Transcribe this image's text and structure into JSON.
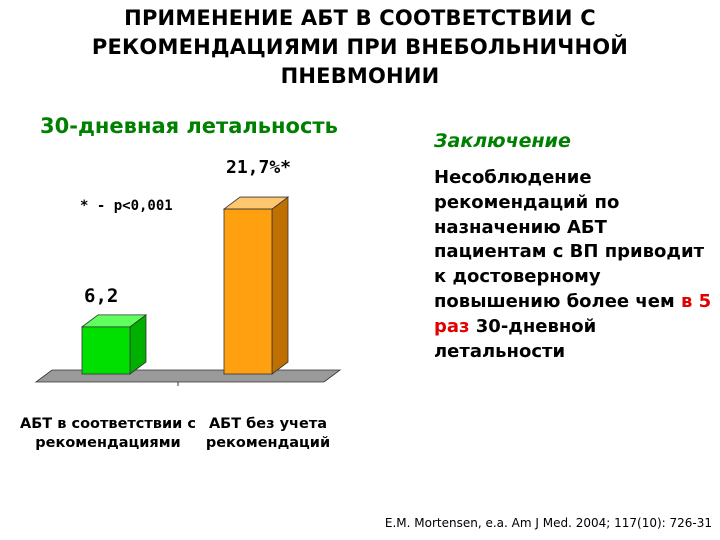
{
  "title": "ПРИМЕНЕНИЕ АБТ В СООТВЕТСТВИИ С РЕКОМЕНДАЦИЯМИ ПРИ ВНЕБОЛЬНИЧНОЙ ПНЕВМОНИИ",
  "conclusion": {
    "heading": "Заключение",
    "text_before": "Несоблюдение рекомендаций по назначению АБТ пациентам с ВП приводит к достоверному повышению более чем ",
    "highlight": "в 5 раз",
    "text_after": " 30-дневной летальности",
    "highlight_color": "#e00000"
  },
  "citation": "E.M. Mortensen, e.a. Am J Med. 2004; 117(10): 726-31",
  "colors": {
    "title_green": "#008000",
    "bar1": "#00e000",
    "bar2": "#ffa010",
    "floor": "#9a9a9a"
  },
  "chart_data": {
    "type": "bar",
    "title": "30-дневная летальность",
    "categories": [
      "АБТ в соответствии с рекомендациями",
      "АБТ без учета рекомендаций"
    ],
    "values": [
      6.2,
      21.7
    ],
    "data_labels": [
      "6,2",
      "21,7%*"
    ],
    "annotation": "* - p<0,001",
    "ylim": [
      0,
      25
    ],
    "grid": false,
    "style": "3d"
  }
}
